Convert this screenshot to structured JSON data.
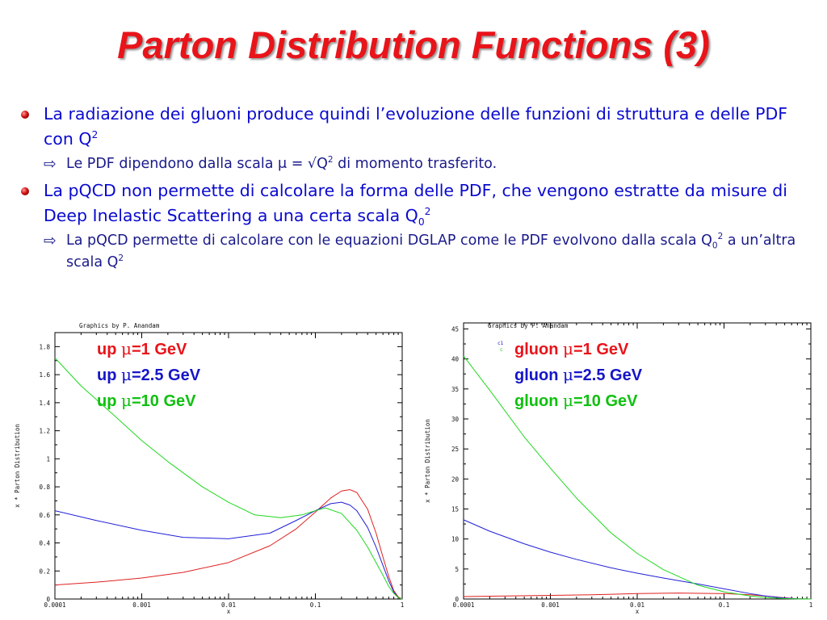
{
  "slide": {
    "title": "Parton Distribution Functions (3)",
    "bullets": [
      {
        "text_main": "La radiazione dei gluoni produce quindi l’evoluzione delle funzioni di struttura e delle PDF con Q",
        "sup": "2",
        "sub_bullets": [
          {
            "pre": "Le PDF dipendono dalla scala ",
            "mu": "μ",
            "mid": " = √Q",
            "sup": "2",
            "post": " di momento trasferito."
          }
        ]
      },
      {
        "text_main": "La pQCD non permette di calcolare la forma delle PDF, che vengono estratte da misure di Deep Inelastic Scattering a una certa scala Q",
        "sub": "0",
        "sup": "2",
        "sub_bullets": [
          {
            "pre": "La pQCD permette di calcolare con le equazioni DGLAP come le PDF evolvono dalla scala Q",
            "sub": "0",
            "sup": "2",
            "post": " a un’altra scala Q",
            "sup2": "2"
          }
        ]
      }
    ]
  },
  "chart_data": [
    {
      "type": "line",
      "header": "Graphics by P. Anandam",
      "xlabel": "x",
      "ylabel": "x * Parton Distribution",
      "xscale": "log",
      "xlim": [
        0.0001,
        1
      ],
      "ylim": [
        0,
        1.9
      ],
      "xticks": [
        "0.0001",
        "0.001",
        "0.01",
        "0.1",
        "1"
      ],
      "yticks": [
        "0",
        "0.2",
        "0.4",
        "0.6",
        "0.8",
        "1",
        "1.2",
        "1.4",
        "1.6",
        "1.8"
      ],
      "legend": [
        {
          "label": "up ",
          "mu": "μ",
          "value": "=1 GeV",
          "color": "#e8141a"
        },
        {
          "label": "up ",
          "mu": "μ",
          "value": "=2.5 GeV",
          "color": "#1515c8"
        },
        {
          "label": "up ",
          "mu": "μ",
          "value": "=10 GeV",
          "color": "#0fc00f"
        }
      ],
      "series": [
        {
          "color": "#e02020",
          "x": [
            0.0001,
            0.0003,
            0.001,
            0.003,
            0.01,
            0.03,
            0.06,
            0.1,
            0.15,
            0.2,
            0.25,
            0.3,
            0.4,
            0.5,
            0.6,
            0.7,
            0.8,
            0.9,
            1.0
          ],
          "y": [
            0.1,
            0.12,
            0.15,
            0.19,
            0.26,
            0.38,
            0.5,
            0.62,
            0.72,
            0.77,
            0.78,
            0.76,
            0.64,
            0.47,
            0.3,
            0.16,
            0.06,
            0.015,
            0.0
          ]
        },
        {
          "color": "#2020d8",
          "x": [
            0.0001,
            0.0003,
            0.001,
            0.003,
            0.01,
            0.03,
            0.06,
            0.1,
            0.15,
            0.2,
            0.25,
            0.3,
            0.4,
            0.5,
            0.6,
            0.7,
            0.8,
            0.9,
            1.0
          ],
          "y": [
            0.63,
            0.56,
            0.49,
            0.44,
            0.43,
            0.47,
            0.56,
            0.63,
            0.68,
            0.69,
            0.67,
            0.63,
            0.51,
            0.37,
            0.24,
            0.13,
            0.05,
            0.01,
            0.0
          ]
        },
        {
          "color": "#20d820",
          "x": [
            0.0001,
            0.0002,
            0.0005,
            0.001,
            0.002,
            0.005,
            0.01,
            0.02,
            0.04,
            0.07,
            0.1,
            0.13,
            0.2,
            0.3,
            0.4,
            0.5,
            0.6,
            0.7,
            0.8,
            0.9,
            1.0
          ],
          "y": [
            1.72,
            1.52,
            1.3,
            1.13,
            0.98,
            0.8,
            0.69,
            0.6,
            0.58,
            0.6,
            0.63,
            0.65,
            0.61,
            0.49,
            0.37,
            0.26,
            0.17,
            0.09,
            0.04,
            0.01,
            0.0
          ]
        }
      ]
    },
    {
      "type": "line",
      "header": "Graphics by P. Anandam",
      "xlabel": "x",
      "ylabel": "x * Parton Distribution",
      "xscale": "log",
      "xlim": [
        0.0001,
        1
      ],
      "ylim": [
        0,
        46
      ],
      "xticks": [
        "0.0001",
        "0.001",
        "0.01",
        "0.1",
        "1"
      ],
      "yticks": [
        "0",
        "5",
        "10",
        "15",
        "20",
        "25",
        "30",
        "35",
        "40",
        "45"
      ],
      "corner_label_top": "c1",
      "corner_label_bottom": "c",
      "legend": [
        {
          "label": "gluon ",
          "mu": "μ",
          "value": "=1 GeV",
          "color": "#e8141a"
        },
        {
          "label": "gluon ",
          "mu": "μ",
          "value": "=2.5 GeV",
          "color": "#1515c8"
        },
        {
          "label": "gluon ",
          "mu": "μ",
          "value": "=10 GeV",
          "color": "#0fc00f"
        }
      ],
      "series": [
        {
          "color": "#e02020",
          "x": [
            0.0001,
            0.0003,
            0.001,
            0.003,
            0.01,
            0.03,
            0.1,
            0.2,
            0.3,
            0.5,
            0.7,
            1.0
          ],
          "y": [
            0.4,
            0.5,
            0.6,
            0.7,
            0.9,
            1.0,
            0.9,
            0.7,
            0.5,
            0.2,
            0.05,
            0.0
          ]
        },
        {
          "color": "#2020d8",
          "x": [
            0.0001,
            0.0002,
            0.0005,
            0.001,
            0.002,
            0.005,
            0.01,
            0.02,
            0.05,
            0.1,
            0.2,
            0.3,
            0.5,
            0.7,
            1.0
          ],
          "y": [
            13.2,
            11.3,
            9.2,
            7.8,
            6.6,
            5.2,
            4.3,
            3.5,
            2.5,
            1.7,
            0.9,
            0.5,
            0.15,
            0.03,
            0.0
          ]
        },
        {
          "color": "#20d820",
          "x": [
            0.0001,
            0.0002,
            0.0005,
            0.001,
            0.002,
            0.005,
            0.01,
            0.02,
            0.05,
            0.1,
            0.2,
            0.3,
            0.5,
            0.7,
            1.0
          ],
          "y": [
            40.5,
            34.8,
            27.0,
            21.8,
            16.8,
            11.0,
            7.6,
            4.9,
            2.3,
            1.2,
            0.5,
            0.25,
            0.06,
            0.01,
            0.0
          ]
        }
      ]
    }
  ]
}
